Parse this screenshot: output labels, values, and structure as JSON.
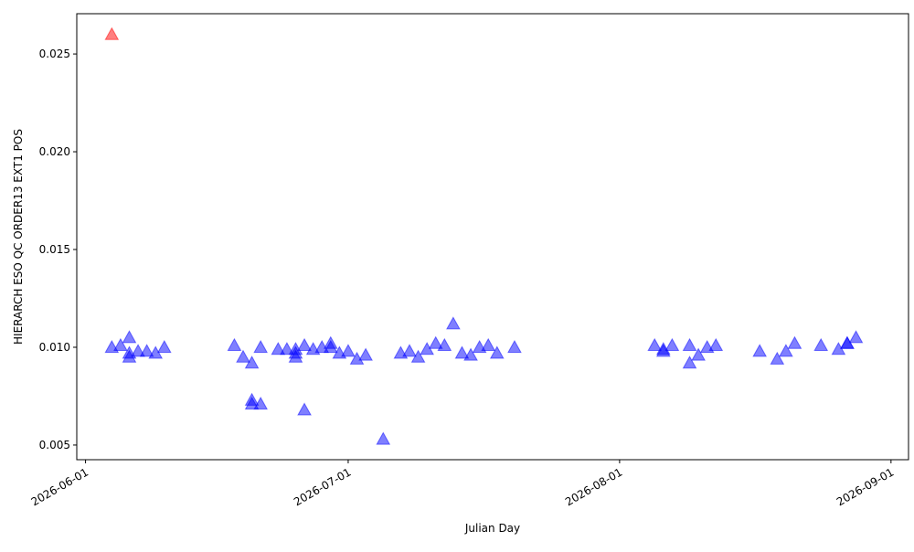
{
  "chart_data": {
    "type": "scatter",
    "xlabel": "Julian Day",
    "ylabel": "HIERARCH ESO QC ORDER13 EXT1 POS",
    "marker": "triangle",
    "alpha": 0.5,
    "xlim": [
      "2026-05-31",
      "2026-09-03"
    ],
    "xticks": [
      "2026-06-01",
      "2026-07-01",
      "2026-08-01",
      "2026-09-01"
    ],
    "ylim": [
      0.00425,
      0.02706
    ],
    "yticks": [
      0.005,
      {
        "value": 0.01,
        "label": "0.010"
      },
      0.015,
      {
        "value": 0.02,
        "label": "0.020"
      },
      0.025
    ],
    "series": [
      {
        "color": "#0000ff",
        "x": [
          "2026-06-04",
          "2026-06-05",
          "2026-06-06",
          "2026-06-06",
          "2026-06-06",
          "2026-06-07",
          "2026-06-08",
          "2026-06-09",
          "2026-06-10",
          "2026-06-18",
          "2026-06-19",
          "2026-06-20",
          "2026-06-20",
          "2026-06-20",
          "2026-06-21",
          "2026-06-21",
          "2026-06-23",
          "2026-06-24",
          "2026-06-25",
          "2026-06-25",
          "2026-06-25",
          "2026-06-26",
          "2026-06-26",
          "2026-06-27",
          "2026-06-28",
          "2026-06-29",
          "2026-06-29",
          "2026-06-30",
          "2026-07-01",
          "2026-07-02",
          "2026-07-03",
          "2026-07-05",
          "2026-07-07",
          "2026-07-08",
          "2026-07-09",
          "2026-07-10",
          "2026-07-11",
          "2026-07-12",
          "2026-07-13",
          "2026-07-14",
          "2026-07-15",
          "2026-07-16",
          "2026-07-17",
          "2026-07-18",
          "2026-07-20",
          "2026-08-05",
          "2026-08-06",
          "2026-08-06",
          "2026-08-07",
          "2026-08-09",
          "2026-08-09",
          "2026-08-10",
          "2026-08-11",
          "2026-08-12",
          "2026-08-17",
          "2026-08-19",
          "2026-08-20",
          "2026-08-21",
          "2026-08-24",
          "2026-08-26",
          "2026-08-27",
          "2026-08-27",
          "2026-08-28"
        ],
        "values": [
          0.01,
          0.0101,
          0.0105,
          0.0095,
          0.0097,
          0.0098,
          0.0098,
          0.0097,
          0.01,
          0.0101,
          0.0095,
          0.0092,
          0.0073,
          0.0071,
          0.0071,
          0.01,
          0.0099,
          0.0099,
          0.0099,
          0.0095,
          0.0097,
          0.0101,
          0.0068,
          0.0099,
          0.01,
          0.0102,
          0.01,
          0.0097,
          0.0098,
          0.0094,
          0.0096,
          0.0053,
          0.0097,
          0.0098,
          0.0095,
          0.0099,
          0.0102,
          0.0101,
          0.0112,
          0.0097,
          0.0096,
          0.01,
          0.0101,
          0.0097,
          0.01,
          0.0101,
          0.0099,
          0.0098,
          0.0101,
          0.0092,
          0.0101,
          0.0096,
          0.01,
          0.0101,
          0.0098,
          0.0094,
          0.0098,
          0.0102,
          0.0101,
          0.0099,
          0.0102,
          0.0102,
          0.0105
        ]
      },
      {
        "color": "#ff0000",
        "x": [
          "2026-06-04"
        ],
        "values": [
          0.026
        ]
      }
    ]
  }
}
